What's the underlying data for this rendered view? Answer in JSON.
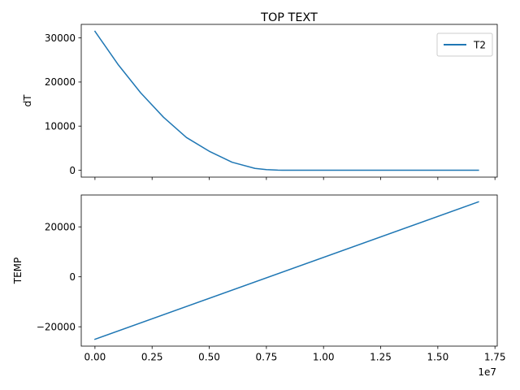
{
  "chart_data": [
    {
      "type": "line",
      "title": "TOP TEXT",
      "xlabel": "",
      "ylabel": "dT",
      "xlim": [
        -600000,
        17600000
      ],
      "ylim": [
        -1575,
        33075
      ],
      "xticks": [
        0,
        2500000,
        5000000,
        7500000,
        10000000,
        12500000,
        15000000,
        17500000
      ],
      "yticks": [
        0,
        10000,
        20000,
        30000
      ],
      "ytick_labels": [
        "0",
        "10000",
        "20000",
        "30000"
      ],
      "grid": false,
      "legend": {
        "position": "top-right"
      },
      "series": [
        {
          "name": "T2",
          "color": "#1f77b4",
          "x": [
            0,
            1000000,
            2000000,
            3000000,
            4000000,
            5000000,
            6000000,
            7000000,
            7500000,
            8000000,
            8200000,
            9000000,
            10000000,
            12000000,
            14000000,
            16000000,
            16777216
          ],
          "y": [
            31500,
            24045,
            17546,
            12006,
            7422,
            4295,
            1800,
            400,
            120,
            10,
            0,
            0,
            0,
            0,
            0,
            0,
            0
          ]
        }
      ]
    },
    {
      "type": "line",
      "title": "",
      "xlabel": "",
      "ylabel": "TEMP",
      "xlim": [
        -600000,
        17600000
      ],
      "ylim": [
        -27750,
        32750
      ],
      "xticks": [
        0,
        2500000,
        5000000,
        7500000,
        10000000,
        12500000,
        15000000,
        17500000
      ],
      "xtick_labels": [
        "0.00",
        "0.25",
        "0.50",
        "0.75",
        "1.00",
        "1.25",
        "1.50",
        "1.75"
      ],
      "x_offset_label": "1e7",
      "yticks": [
        -20000,
        0,
        20000
      ],
      "ytick_labels": [
        "−20000",
        "0",
        "20000"
      ],
      "grid": false,
      "series": [
        {
          "color": "#1f77b4",
          "x": [
            0,
            16777216
          ],
          "y": [
            -25000,
            30000
          ]
        }
      ]
    }
  ]
}
